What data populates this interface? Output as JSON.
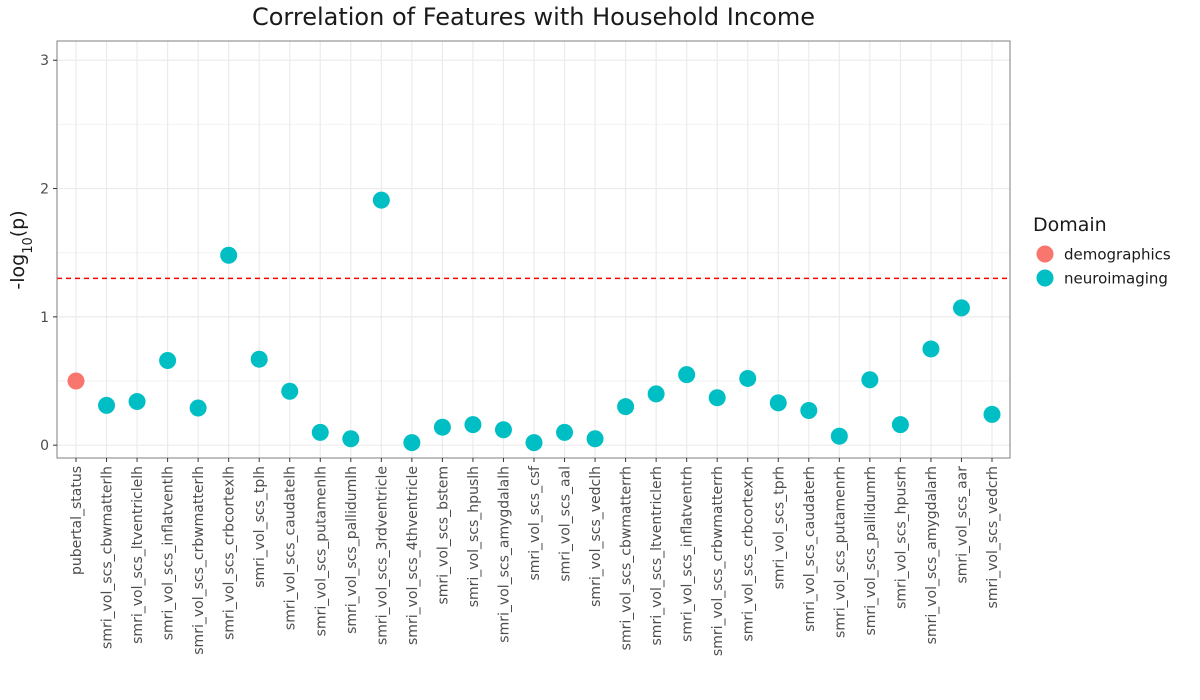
{
  "chart_data": {
    "type": "scatter",
    "title": "Correlation of Features with Household Income",
    "xlabel": "",
    "ylabel": "-log",
    "ylabel_sub": "10",
    "ylabel_suffix": "(p)",
    "ylim": [
      -0.1,
      3.15
    ],
    "yticks": [
      0,
      1,
      2,
      3
    ],
    "threshold": 1.3,
    "threshold_color": "#ff0000",
    "grid": true,
    "legend_position": "right",
    "legend_title": "Domain",
    "domains": [
      {
        "name": "demographics",
        "color": "#F8766D"
      },
      {
        "name": "neuroimaging",
        "color": "#00BFC4"
      }
    ],
    "categories": [
      "pubertal_status",
      "smri_vol_scs_cbwmatterlh",
      "smri_vol_scs_ltventriclelh",
      "smri_vol_scs_inflatventlh",
      "smri_vol_scs_crbwmatterlh",
      "smri_vol_scs_crbcortexlh",
      "smri_vol_scs_tplh",
      "smri_vol_scs_caudatelh",
      "smri_vol_scs_putamenlh",
      "smri_vol_scs_pallidumlh",
      "smri_vol_scs_3rdventricle",
      "smri_vol_scs_4thventricle",
      "smri_vol_scs_bstem",
      "smri_vol_scs_hpuslh",
      "smri_vol_scs_amygdalalh",
      "smri_vol_scs_csf",
      "smri_vol_scs_aal",
      "smri_vol_scs_vedclh",
      "smri_vol_scs_cbwmatterrh",
      "smri_vol_scs_ltventriclerh",
      "smri_vol_scs_inflatventrh",
      "smri_vol_scs_crbwmatterrh",
      "smri_vol_scs_crbcortexrh",
      "smri_vol_scs_tprh",
      "smri_vol_scs_caudaterh",
      "smri_vol_scs_putamenrh",
      "smri_vol_scs_pallidumrh",
      "smri_vol_scs_hpusrh",
      "smri_vol_scs_amygdalarh",
      "smri_vol_scs_aar",
      "smri_vol_scs_vedcrh"
    ],
    "values": [
      0.5,
      0.31,
      0.34,
      0.66,
      0.29,
      1.48,
      0.67,
      0.42,
      0.1,
      0.05,
      1.91,
      0.02,
      0.14,
      0.16,
      0.12,
      0.02,
      0.1,
      0.05,
      0.3,
      0.4,
      0.55,
      0.37,
      0.52,
      0.33,
      0.27,
      0.07,
      0.51,
      0.16,
      0.75,
      1.07,
      0.24
    ],
    "domain_of_point": [
      "demographics",
      "neuroimaging",
      "neuroimaging",
      "neuroimaging",
      "neuroimaging",
      "neuroimaging",
      "neuroimaging",
      "neuroimaging",
      "neuroimaging",
      "neuroimaging",
      "neuroimaging",
      "neuroimaging",
      "neuroimaging",
      "neuroimaging",
      "neuroimaging",
      "neuroimaging",
      "neuroimaging",
      "neuroimaging",
      "neuroimaging",
      "neuroimaging",
      "neuroimaging",
      "neuroimaging",
      "neuroimaging",
      "neuroimaging",
      "neuroimaging",
      "neuroimaging",
      "neuroimaging",
      "neuroimaging",
      "neuroimaging",
      "neuroimaging",
      "neuroimaging"
    ]
  }
}
